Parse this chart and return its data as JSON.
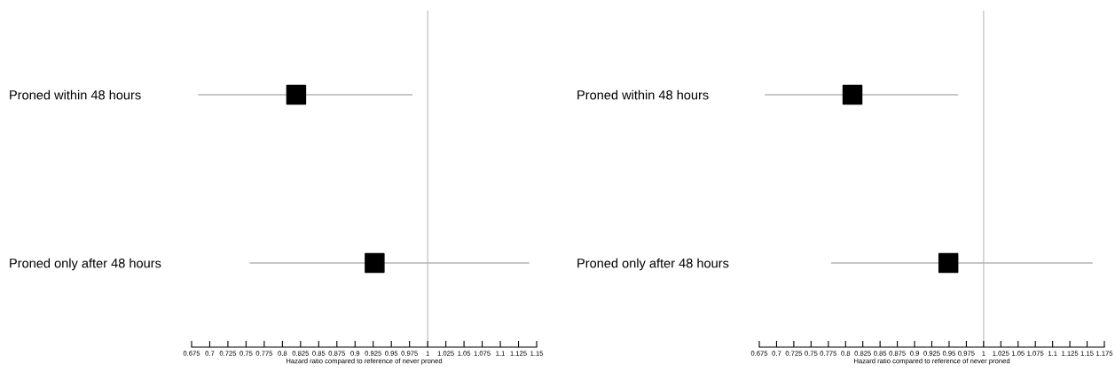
{
  "chart_data": [
    {
      "type": "scatter",
      "orientation": "horizontal",
      "categories": [
        "Proned within 48 hours",
        "Proned only after 48 hours"
      ],
      "series": [
        {
          "color": "#000000",
          "values": [
            0.819,
            0.927
          ],
          "errors": [
            [
              0.684,
              0.979
            ],
            [
              0.755,
              1.14
            ]
          ]
        }
      ],
      "marker": "square",
      "xlabel": "Hazard ratio compared to reference of never proned",
      "xlim": [
        0.675,
        1.15
      ],
      "xticks": [
        0.675,
        0.7,
        0.725,
        0.75,
        0.775,
        0.8,
        0.825,
        0.85,
        0.875,
        0.9,
        0.925,
        0.95,
        0.975,
        1,
        1.025,
        1.05,
        1.075,
        1.1,
        1.125,
        1.15
      ],
      "ref_lines": [
        {
          "axis": "x",
          "value": 1,
          "color": "#c8c8c8"
        }
      ],
      "grid": false,
      "legend": false
    },
    {
      "type": "scatter",
      "orientation": "horizontal",
      "categories": [
        "Proned within 48 hours",
        "Proned only after 48 hours"
      ],
      "series": [
        {
          "color": "#000000",
          "values": [
            0.81,
            0.949
          ],
          "errors": [
            [
              0.683,
              0.963
            ],
            [
              0.779,
              1.158
            ]
          ]
        }
      ],
      "marker": "square",
      "xlabel": "Hazard ratio compared to reference of never proned",
      "xlim": [
        0.675,
        1.175
      ],
      "xticks": [
        0.675,
        0.7,
        0.725,
        0.75,
        0.775,
        0.8,
        0.825,
        0.85,
        0.875,
        0.9,
        0.925,
        0.95,
        0.975,
        1,
        1.025,
        1.05,
        1.075,
        1.1,
        1.125,
        1.15,
        1.175
      ],
      "ref_lines": [
        {
          "axis": "x",
          "value": 1,
          "color": "#c8c8c8"
        }
      ],
      "grid": false,
      "legend": false
    }
  ]
}
